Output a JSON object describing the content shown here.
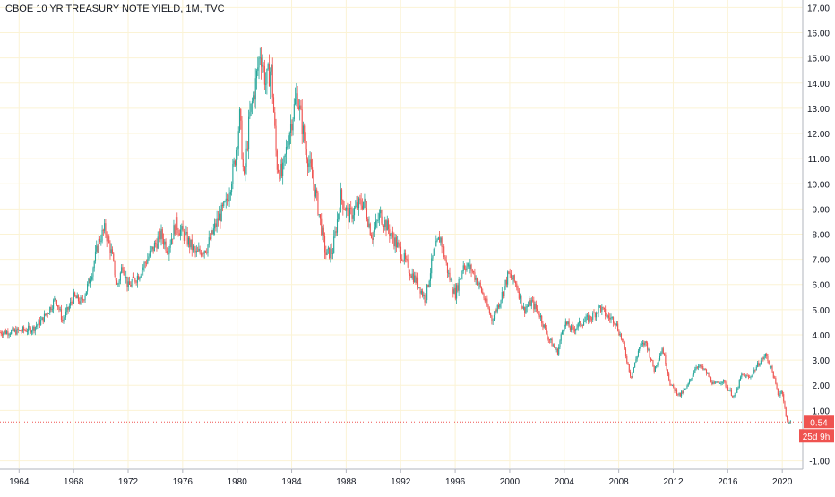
{
  "chart_data": {
    "type": "candlestick",
    "title": "CBOE 10 YR TREASURY NOTE YIELD, 1M, TVC",
    "xlabel": "",
    "ylabel": "",
    "x_ticks": [
      "1964",
      "1968",
      "1972",
      "1976",
      "1980",
      "1984",
      "1988",
      "1992",
      "1996",
      "2000",
      "2004",
      "2008",
      "2012",
      "2016",
      "2020"
    ],
    "y_ticks": [
      "-1.00",
      "1.00",
      "2.00",
      "3.00",
      "4.00",
      "5.00",
      "6.00",
      "7.00",
      "8.00",
      "9.00",
      "10.00",
      "11.00",
      "12.00",
      "13.00",
      "14.00",
      "15.00",
      "16.00",
      "17.00"
    ],
    "xlim": [
      1962.6,
      2021.5
    ],
    "ylim": [
      -1.3,
      17.3
    ],
    "grid": true,
    "last_value": 0.54,
    "last_value_label": "0.54",
    "countdown_label": "25d 9h",
    "colors": {
      "up": "#26a69a",
      "down": "#ef5350",
      "grid": "#fbf3d5",
      "price_line": "#ef5350"
    },
    "series": [
      {
        "values": [
          {
            "x": 1962.6,
            "y": 4.1
          },
          {
            "x": 1964.0,
            "y": 4.15
          },
          {
            "x": 1965.0,
            "y": 4.25
          },
          {
            "x": 1965.7,
            "y": 4.6
          },
          {
            "x": 1966.2,
            "y": 5.0
          },
          {
            "x": 1966.7,
            "y": 5.45
          },
          {
            "x": 1967.2,
            "y": 4.55
          },
          {
            "x": 1968.0,
            "y": 5.5
          },
          {
            "x": 1968.6,
            "y": 5.3
          },
          {
            "x": 1969.2,
            "y": 6.2
          },
          {
            "x": 1969.9,
            "y": 7.8
          },
          {
            "x": 1970.3,
            "y": 8.2
          },
          {
            "x": 1970.8,
            "y": 7.2
          },
          {
            "x": 1971.2,
            "y": 5.9
          },
          {
            "x": 1971.6,
            "y": 6.8
          },
          {
            "x": 1972.0,
            "y": 5.9
          },
          {
            "x": 1972.8,
            "y": 6.4
          },
          {
            "x": 1973.6,
            "y": 7.2
          },
          {
            "x": 1974.4,
            "y": 8.0
          },
          {
            "x": 1974.9,
            "y": 7.4
          },
          {
            "x": 1975.5,
            "y": 8.4
          },
          {
            "x": 1976.3,
            "y": 7.8
          },
          {
            "x": 1977.0,
            "y": 7.2
          },
          {
            "x": 1977.8,
            "y": 7.5
          },
          {
            "x": 1978.6,
            "y": 8.6
          },
          {
            "x": 1979.2,
            "y": 9.2
          },
          {
            "x": 1979.8,
            "y": 10.8
          },
          {
            "x": 1980.2,
            "y": 12.7
          },
          {
            "x": 1980.5,
            "y": 10.0
          },
          {
            "x": 1980.9,
            "y": 12.6
          },
          {
            "x": 1981.3,
            "y": 13.8
          },
          {
            "x": 1981.7,
            "y": 15.3
          },
          {
            "x": 1982.1,
            "y": 14.0
          },
          {
            "x": 1982.5,
            "y": 14.6
          },
          {
            "x": 1982.9,
            "y": 10.8
          },
          {
            "x": 1983.3,
            "y": 10.3
          },
          {
            "x": 1983.8,
            "y": 12.0
          },
          {
            "x": 1984.4,
            "y": 13.6
          },
          {
            "x": 1985.0,
            "y": 11.5
          },
          {
            "x": 1985.8,
            "y": 9.5
          },
          {
            "x": 1986.5,
            "y": 7.2
          },
          {
            "x": 1987.0,
            "y": 7.3
          },
          {
            "x": 1987.6,
            "y": 9.5
          },
          {
            "x": 1988.2,
            "y": 8.7
          },
          {
            "x": 1988.8,
            "y": 9.1
          },
          {
            "x": 1989.3,
            "y": 9.3
          },
          {
            "x": 1989.9,
            "y": 7.9
          },
          {
            "x": 1990.5,
            "y": 8.8
          },
          {
            "x": 1991.2,
            "y": 8.1
          },
          {
            "x": 1992.0,
            "y": 7.3
          },
          {
            "x": 1992.6,
            "y": 6.6
          },
          {
            "x": 1993.3,
            "y": 6.0
          },
          {
            "x": 1993.8,
            "y": 5.4
          },
          {
            "x": 1994.4,
            "y": 7.2
          },
          {
            "x": 1994.9,
            "y": 7.9
          },
          {
            "x": 1995.5,
            "y": 6.4
          },
          {
            "x": 1996.0,
            "y": 5.6
          },
          {
            "x": 1996.6,
            "y": 6.8
          },
          {
            "x": 1997.2,
            "y": 6.6
          },
          {
            "x": 1997.9,
            "y": 5.8
          },
          {
            "x": 1998.7,
            "y": 4.6
          },
          {
            "x": 1999.3,
            "y": 5.4
          },
          {
            "x": 1999.9,
            "y": 6.4
          },
          {
            "x": 2000.5,
            "y": 6.0
          },
          {
            "x": 2001.0,
            "y": 5.0
          },
          {
            "x": 2001.6,
            "y": 5.3
          },
          {
            "x": 2002.2,
            "y": 4.8
          },
          {
            "x": 2002.8,
            "y": 3.9
          },
          {
            "x": 2003.5,
            "y": 3.3
          },
          {
            "x": 2004.0,
            "y": 4.5
          },
          {
            "x": 2004.6,
            "y": 4.2
          },
          {
            "x": 2005.3,
            "y": 4.5
          },
          {
            "x": 2006.0,
            "y": 4.7
          },
          {
            "x": 2006.6,
            "y": 5.1
          },
          {
            "x": 2007.2,
            "y": 4.7
          },
          {
            "x": 2007.7,
            "y": 4.6
          },
          {
            "x": 2008.3,
            "y": 3.7
          },
          {
            "x": 2008.9,
            "y": 2.3
          },
          {
            "x": 2009.5,
            "y": 3.5
          },
          {
            "x": 2010.0,
            "y": 3.7
          },
          {
            "x": 2010.6,
            "y": 2.6
          },
          {
            "x": 2011.2,
            "y": 3.5
          },
          {
            "x": 2011.8,
            "y": 2.0
          },
          {
            "x": 2012.5,
            "y": 1.6
          },
          {
            "x": 2013.0,
            "y": 1.9
          },
          {
            "x": 2013.7,
            "y": 2.8
          },
          {
            "x": 2014.3,
            "y": 2.6
          },
          {
            "x": 2015.0,
            "y": 2.0
          },
          {
            "x": 2015.6,
            "y": 2.2
          },
          {
            "x": 2016.5,
            "y": 1.5
          },
          {
            "x": 2017.0,
            "y": 2.4
          },
          {
            "x": 2017.6,
            "y": 2.3
          },
          {
            "x": 2018.3,
            "y": 2.9
          },
          {
            "x": 2018.8,
            "y": 3.2
          },
          {
            "x": 2019.3,
            "y": 2.5
          },
          {
            "x": 2019.7,
            "y": 1.6
          },
          {
            "x": 2020.0,
            "y": 1.8
          },
          {
            "x": 2020.3,
            "y": 0.6
          },
          {
            "x": 2020.6,
            "y": 0.54
          }
        ]
      }
    ]
  }
}
